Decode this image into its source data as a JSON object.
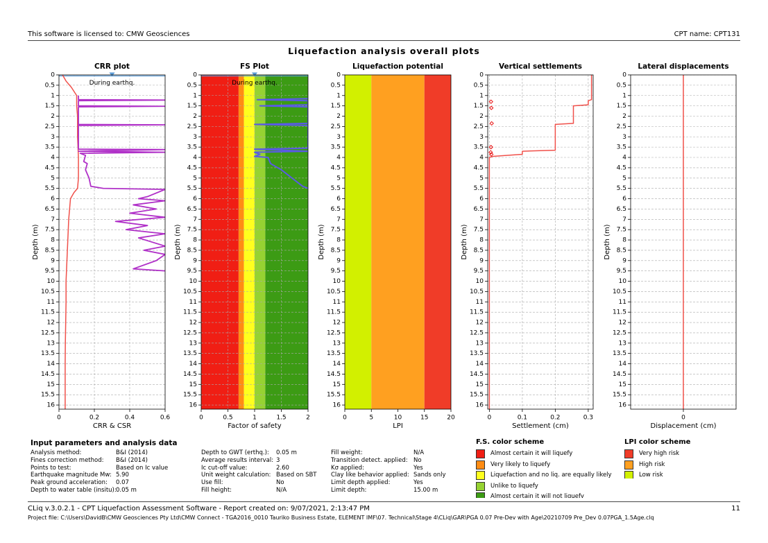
{
  "header": {
    "license": "This software is licensed to: CMW Geosciences",
    "cpt": "CPT name: CPT131"
  },
  "title": "Liquefaction analysis overall plots",
  "chart_data": [
    {
      "type": "profile",
      "title": "CRR plot",
      "x_label": "CRR & CSR",
      "y_label": "Depth (m)",
      "xlim": [
        0,
        0.6
      ],
      "xticks": [
        0,
        0.2,
        0.4,
        0.6
      ],
      "ylim": [
        0,
        16.2
      ],
      "yticks": [
        0,
        0.5,
        1,
        1.5,
        2,
        2.5,
        3,
        3.5,
        4,
        4.5,
        5,
        5.5,
        6,
        6.5,
        7,
        7.5,
        8,
        8.5,
        9,
        9.5,
        10,
        10.5,
        11,
        11.5,
        12,
        12.5,
        13,
        13.5,
        14,
        14.5,
        15,
        15.5,
        16
      ],
      "grid": true,
      "annotation": {
        "text": "During earthq.",
        "depth": 0.05,
        "at": 0.3,
        "color": "#5b9bd5"
      },
      "series": [
        {
          "color": "#f0504a",
          "width": 1.5,
          "depths": [
            0,
            0.3,
            0.6,
            1.0,
            1.5,
            2,
            3,
            4,
            5,
            5.5,
            5.7,
            6,
            7,
            8,
            9,
            10,
            11,
            12,
            13,
            14,
            15,
            16.2
          ],
          "values": [
            0.02,
            0.04,
            0.07,
            0.1,
            0.1,
            0.105,
            0.105,
            0.11,
            0.11,
            0.105,
            0.085,
            0.065,
            0.055,
            0.05,
            0.045,
            0.04,
            0.04,
            0.038,
            0.036,
            0.035,
            0.035,
            0.035
          ]
        },
        {
          "color": "#b030c8",
          "width": 1.8,
          "depths": [
            1.0,
            1.2,
            1.22,
            1.25,
            1.5,
            1.52,
            1.55,
            2.4,
            2.42,
            2.45,
            3.6,
            3.62,
            3.7,
            3.75,
            3.8,
            3.9,
            4.2,
            4.3,
            4.6,
            5.0,
            5.4,
            5.5,
            5.55,
            5.9,
            6.0,
            6.1,
            6.3,
            6.5,
            6.7,
            6.9,
            7.1,
            7.3,
            7.5,
            7.7,
            7.9,
            8.3,
            8.5,
            8.7,
            9.0,
            9.4,
            9.5
          ],
          "values": [
            0.11,
            0.11,
            0.6,
            0.11,
            0.11,
            0.6,
            0.11,
            0.11,
            0.6,
            0.11,
            0.11,
            0.6,
            0.11,
            0.6,
            0.12,
            0.15,
            0.14,
            0.16,
            0.15,
            0.17,
            0.18,
            0.25,
            0.6,
            0.5,
            0.45,
            0.6,
            0.42,
            0.55,
            0.4,
            0.6,
            0.32,
            0.5,
            0.38,
            0.6,
            0.45,
            0.6,
            0.48,
            0.6,
            0.55,
            0.42,
            0.6
          ]
        }
      ]
    },
    {
      "type": "profile",
      "title": "FS Plot",
      "x_label": "Factor of safety",
      "y_label": "Depth (m)",
      "xlim": [
        0,
        2
      ],
      "xticks": [
        0,
        0.5,
        1,
        1.5,
        2
      ],
      "ylim": [
        0,
        16.2
      ],
      "yticks": [
        0,
        0.5,
        1,
        1.5,
        2,
        2.5,
        3,
        3.5,
        4,
        4.5,
        5,
        5.5,
        6,
        6.5,
        7,
        7.5,
        8,
        8.5,
        9,
        9.5,
        10,
        10.5,
        11,
        11.5,
        12,
        12.5,
        13,
        13.5,
        14,
        14.5,
        15,
        15.5,
        16
      ],
      "grid": true,
      "bands": [
        {
          "from": 0,
          "to": 0.7,
          "color": "#f01e14"
        },
        {
          "from": 0.7,
          "to": 0.8,
          "color": "#ff8c14"
        },
        {
          "from": 0.8,
          "to": 1.0,
          "color": "#ffff1e"
        },
        {
          "from": 1.0,
          "to": 1.2,
          "color": "#96d232"
        },
        {
          "from": 1.2,
          "to": 2,
          "color": "#3c9b14"
        }
      ],
      "annotation": {
        "text": "During earthq.",
        "depth": 0.05,
        "at": 1,
        "color": "#5b9bd5"
      },
      "series": [
        {
          "color": "#5a5ae6",
          "width": 2,
          "depths": [
            1.15,
            1.2,
            1.25,
            1.45,
            1.5,
            1.55,
            2.35,
            2.4,
            2.45,
            3.55,
            3.6,
            3.7,
            3.75,
            3.85,
            3.95,
            4.0,
            4.3,
            4.6,
            5.0,
            5.4,
            5.5
          ],
          "values": [
            2,
            1.05,
            2,
            2,
            1.1,
            2,
            2,
            1.0,
            2,
            2,
            1.0,
            2,
            1.0,
            1.1,
            1.0,
            1.25,
            1.3,
            1.5,
            1.7,
            1.9,
            2
          ]
        }
      ]
    },
    {
      "type": "profile",
      "title": "Liquefaction potential",
      "x_label": "LPI",
      "y_label": "Depth (m)",
      "xlim": [
        0,
        20
      ],
      "xticks": [
        0,
        5,
        10,
        15,
        20
      ],
      "ylim": [
        0,
        16.2
      ],
      "yticks": [
        0,
        0.5,
        1,
        1.5,
        2,
        2.5,
        3,
        3.5,
        4,
        4.5,
        5,
        5.5,
        6,
        6.5,
        7,
        7.5,
        8,
        8.5,
        9,
        9.5,
        10,
        10.5,
        11,
        11.5,
        12,
        12.5,
        13,
        13.5,
        14,
        14.5,
        15,
        15.5,
        16
      ],
      "grid": false,
      "bands": [
        {
          "from": 0,
          "to": 5,
          "color": "#d2f000"
        },
        {
          "from": 5,
          "to": 15,
          "color": "#ffa020"
        },
        {
          "from": 15,
          "to": 20,
          "color": "#f03c28"
        }
      ],
      "series": []
    },
    {
      "type": "profile",
      "title": "Vertical settlements",
      "x_label": "Settlement (cm)",
      "y_label": "Depth (m)",
      "xlim": [
        -0.005,
        0.315
      ],
      "xticks": [
        0,
        0.1,
        0.2,
        0.3
      ],
      "ylim": [
        0,
        16.2
      ],
      "yticks": [
        0,
        0.5,
        1,
        1.5,
        2,
        2.5,
        3,
        3.5,
        4,
        4.5,
        5,
        5.5,
        6,
        6.5,
        7,
        7.5,
        8,
        8.5,
        9,
        9.5,
        10,
        10.5,
        11,
        11.5,
        12,
        12.5,
        13,
        13.5,
        14,
        14.5,
        15,
        15.5,
        16
      ],
      "grid": true,
      "series": [
        {
          "color": "#f0504a",
          "width": 1.5,
          "depths": [
            0,
            1.2,
            1.25,
            1.45,
            1.5,
            2.35,
            2.4,
            3.65,
            3.7,
            3.85,
            3.95,
            4.0,
            16.2
          ],
          "values": [
            0.31,
            0.31,
            0.3,
            0.3,
            0.255,
            0.255,
            0.2,
            0.2,
            0.1,
            0.1,
            0.01,
            0,
            0
          ]
        },
        {
          "color": "#e81010",
          "marker": true,
          "depths": [
            1.3,
            1.6,
            2.35,
            3.5,
            3.75,
            3.85
          ],
          "values": [
            0.005,
            0.006,
            0.007,
            0.005,
            0.004,
            0.006
          ]
        }
      ]
    },
    {
      "type": "profile",
      "title": "Lateral displacements",
      "x_label": "Displacement (cm)",
      "y_label": "Depth (m)",
      "xlim": [
        -1,
        1
      ],
      "xticks": [
        0
      ],
      "ylim": [
        0,
        16.2
      ],
      "yticks": [
        0,
        0.5,
        1,
        1.5,
        2,
        2.5,
        3,
        3.5,
        4,
        4.5,
        5,
        5.5,
        6,
        6.5,
        7,
        7.5,
        8,
        8.5,
        9,
        9.5,
        10,
        10.5,
        11,
        11.5,
        12,
        12.5,
        13,
        13.5,
        14,
        14.5,
        15,
        15.5,
        16
      ],
      "grid": true,
      "series": [
        {
          "color": "#f0504a",
          "width": 1.5,
          "depths": [
            0,
            16.2
          ],
          "values": [
            0,
            0
          ]
        }
      ]
    }
  ],
  "parameters": {
    "title": "Input parameters and analysis data",
    "columns": [
      [
        [
          "Analysis method:",
          "B&I (2014)"
        ],
        [
          "Fines correction method:",
          "B&I (2014)"
        ],
        [
          "Points to test:",
          "Based on Ic value"
        ],
        [
          "Earthquake magnitude Mw:",
          "5.90"
        ],
        [
          "Peak ground acceleration:",
          "0.07"
        ],
        [
          "Depth to water table (insitu):",
          "0.05 m"
        ]
      ],
      [
        [
          "Depth to GWT (erthq.):",
          "0.05 m"
        ],
        [
          "Average results interval:",
          "3"
        ],
        [
          "Ic cut-off value:",
          "2.60"
        ],
        [
          "Unit weight calculation:",
          "Based on SBT"
        ],
        [
          "Use fill:",
          "No"
        ],
        [
          "Fill height:",
          "N/A"
        ]
      ],
      [
        [
          "Fill weight:",
          "N/A"
        ],
        [
          "Transition detect. applied:",
          "No"
        ],
        [
          "Kσ applied:",
          "Yes"
        ],
        [
          "Clay like behavior applied:",
          "Sands only"
        ],
        [
          "Limit depth applied:",
          "Yes"
        ],
        [
          "Limit depth:",
          "15.00 m"
        ]
      ]
    ]
  },
  "fs_scheme": {
    "title": "F.S. color scheme",
    "items": [
      {
        "label": "Almost certain it will liquefy",
        "color": "#f01e14"
      },
      {
        "label": "Very likely to liquefy",
        "color": "#ff8c14"
      },
      {
        "label": "Liquefaction and no liq. are equally likely",
        "color": "#ffff1e"
      },
      {
        "label": "Unlike to liquefy",
        "color": "#96d232"
      },
      {
        "label": "Almost certain it will not liquefy",
        "color": "#3c9b14"
      }
    ]
  },
  "lpi_scheme": {
    "title": "LPI color scheme",
    "items": [
      {
        "label": "Very high risk",
        "color": "#f03c28"
      },
      {
        "label": "High risk",
        "color": "#ffa020"
      },
      {
        "label": "Low risk",
        "color": "#d2f000"
      }
    ]
  },
  "footer": {
    "software": "CLiq v.3.0.2.1 - CPT Liquefaction Assessment Software - Report created on: 9/07/2021, 2:13:47 PM",
    "page": "11",
    "project": "Project file: C:\\Users\\DavidB\\CMW Geosciences Pty Ltd\\CMW Connect - TGA2016_0010 Tauriko Business Estate, ELEMENT IMF\\07. Technical\\Stage 4\\CLiq\\GAR\\PGA 0.07 Pre-Dev with Age\\20210709 Pre_Dev 0.07PGA_1.5Age.clq"
  }
}
